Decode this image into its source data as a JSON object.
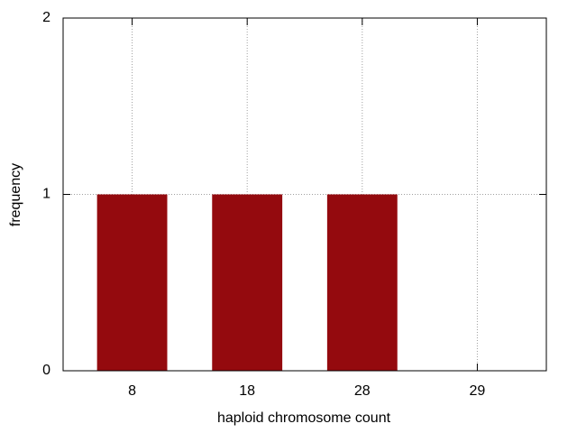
{
  "chart_data": {
    "type": "bar",
    "xlabel": "haploid chromosome count",
    "ylabel": "frequency",
    "categories": [
      "8",
      "18",
      "28",
      "29"
    ],
    "values": [
      1,
      1,
      1,
      0
    ],
    "color": "#940a0e",
    "ylim": [
      0,
      2
    ],
    "yticks": [
      0,
      1,
      2
    ],
    "grid": true
  }
}
